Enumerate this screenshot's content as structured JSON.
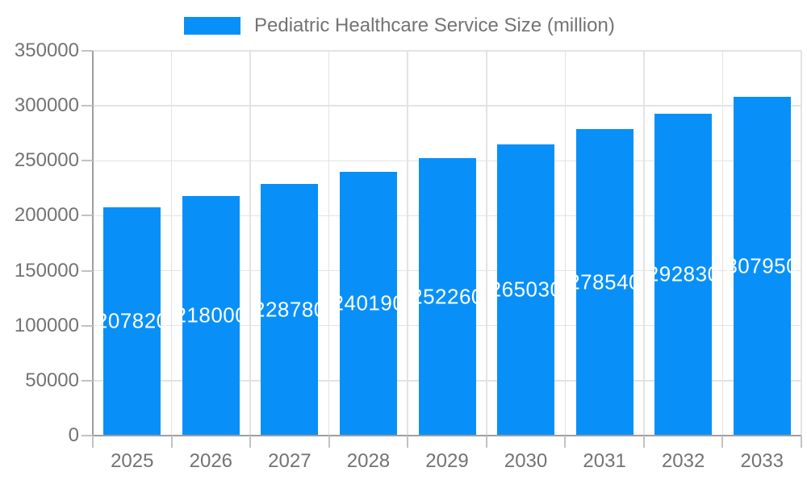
{
  "chart_data": {
    "type": "bar",
    "legend": "Pediatric Healthcare Service Size (million)",
    "categories": [
      "2025",
      "2026",
      "2027",
      "2028",
      "2029",
      "2030",
      "2031",
      "2032",
      "2033"
    ],
    "values": [
      207820,
      218000,
      228780,
      240190,
      252260,
      265030,
      278540,
      292830,
      307950
    ],
    "value_labels": [
      "207820",
      "218000",
      "228780",
      "240190",
      "252260",
      "265030",
      "278540",
      "292830",
      "307950"
    ],
    "ytick_labels": [
      "0",
      "50000",
      "100000",
      "150000",
      "200000",
      "250000",
      "300000",
      "350000"
    ],
    "ytick_values": [
      0,
      50000,
      100000,
      150000,
      200000,
      250000,
      300000,
      350000
    ],
    "ylim": [
      0,
      350000
    ],
    "xlabel": "",
    "ylabel": "",
    "grid": true,
    "legend_position": "top-center",
    "bar_color": "#0990f8",
    "bar_label_color": "#ffffff",
    "axis_text_color": "#737373"
  }
}
